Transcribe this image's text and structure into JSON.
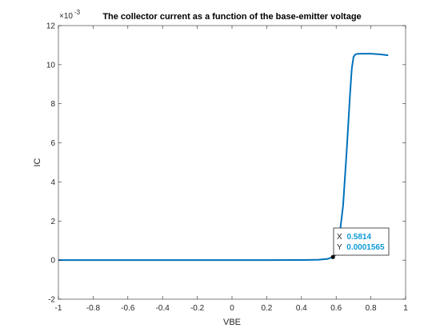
{
  "chart_data": {
    "type": "line",
    "title": "The collector current as a function of the base-emitter voltage",
    "xlabel": "VBE",
    "ylabel": "IC",
    "y_exponent_label": "×10",
    "y_exponent_power": "-3",
    "xlim": [
      -1,
      1
    ],
    "ylim": [
      -0.002,
      0.012
    ],
    "x_ticks": [
      -1,
      -0.8,
      -0.6,
      -0.4,
      -0.2,
      0,
      0.2,
      0.4,
      0.6,
      0.8,
      1
    ],
    "x_tick_labels": [
      "-1",
      "-0.8",
      "-0.6",
      "-0.4",
      "-0.2",
      "0",
      "0.2",
      "0.4",
      "0.6",
      "0.8",
      "1"
    ],
    "y_ticks": [
      -0.002,
      0,
      0.002,
      0.004,
      0.006,
      0.008,
      0.01,
      0.012
    ],
    "y_tick_labels": [
      "-2",
      "0",
      "2",
      "4",
      "6",
      "8",
      "10",
      "12"
    ],
    "grid": false,
    "line_color": "#0072bd",
    "series": [
      {
        "x": [
          -1,
          -0.8,
          -0.6,
          -0.4,
          -0.2,
          0,
          0.2,
          0.4,
          0.5,
          0.55,
          0.5814,
          0.6,
          0.62,
          0.64,
          0.66,
          0.68,
          0.69,
          0.7,
          0.71,
          0.72,
          0.75,
          0.8,
          0.85,
          0.9
        ],
        "y": [
          0,
          0,
          0,
          0,
          0,
          0,
          0,
          5e-06,
          2e-05,
          6e-05,
          0.0001565,
          0.0005,
          0.0013,
          0.0028,
          0.0055,
          0.0085,
          0.0098,
          0.0104,
          0.01052,
          0.01055,
          0.01056,
          0.01056,
          0.01053,
          0.01048
        ]
      }
    ],
    "datatip": {
      "x_label": "X",
      "x_value": "0.5814",
      "y_label": "Y",
      "y_value": "0.0001565",
      "x": 0.5814,
      "y": 0.0001565
    }
  }
}
